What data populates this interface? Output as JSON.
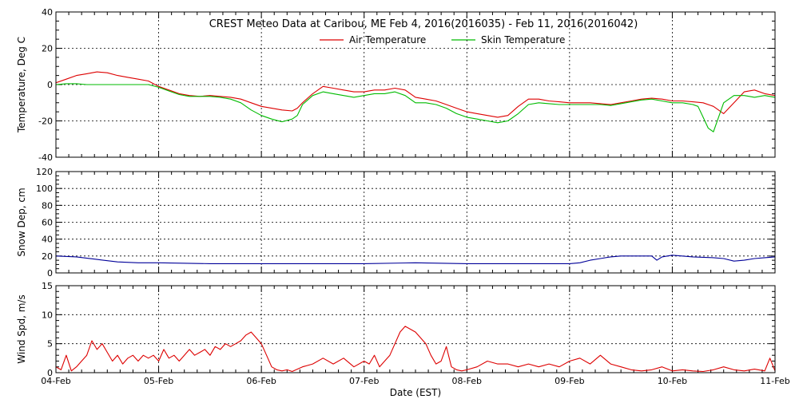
{
  "chart_data": {
    "type": "line",
    "title": "CREST Meteo Data at Caribou, ME   Feb  4, 2016(2016035) - Feb 11, 2016(2016042)",
    "xlabel": "Date (EST)",
    "x_ticks": [
      "04-Feb",
      "05-Feb",
      "06-Feb",
      "07-Feb",
      "08-Feb",
      "09-Feb",
      "10-Feb",
      "11-Feb"
    ],
    "x_range": [
      0,
      7
    ],
    "grid": true,
    "legend_placement": "top-center",
    "panels": [
      {
        "id": "temperature",
        "ylabel": "Temperature, Deg C",
        "ylim": [
          -40,
          40
        ],
        "yticks": [
          -40,
          -20,
          0,
          20,
          40
        ],
        "series": [
          {
            "name": "Air Temperature",
            "color": "#dd0000",
            "x": [
              0,
              0.1,
              0.2,
              0.3,
              0.4,
              0.5,
              0.6,
              0.7,
              0.8,
              0.9,
              1.0,
              1.1,
              1.2,
              1.3,
              1.4,
              1.5,
              1.6,
              1.7,
              1.8,
              1.9,
              2.0,
              2.1,
              2.2,
              2.3,
              2.35,
              2.4,
              2.5,
              2.6,
              2.7,
              2.8,
              2.9,
              3.0,
              3.1,
              3.2,
              3.3,
              3.4,
              3.5,
              3.6,
              3.7,
              3.8,
              3.9,
              4.0,
              4.1,
              4.2,
              4.3,
              4.4,
              4.5,
              4.6,
              4.7,
              4.8,
              4.9,
              5.0,
              5.1,
              5.2,
              5.3,
              5.4,
              5.5,
              5.6,
              5.7,
              5.8,
              5.9,
              6.0,
              6.1,
              6.2,
              6.3,
              6.4,
              6.5,
              6.6,
              6.7,
              6.8,
              6.9,
              7.0
            ],
            "y": [
              1,
              3,
              5,
              6,
              7,
              6.5,
              5,
              4,
              3,
              2,
              -1,
              -3,
              -5,
              -6,
              -6.5,
              -6,
              -6.5,
              -7,
              -8,
              -10,
              -12,
              -13,
              -14,
              -14.5,
              -13,
              -10,
              -5,
              -1,
              -2,
              -3,
              -4,
              -4,
              -3,
              -3,
              -2,
              -3,
              -7,
              -8,
              -9,
              -11,
              -13,
              -15,
              -16,
              -17,
              -18,
              -17,
              -12,
              -8,
              -8,
              -9,
              -9.5,
              -10,
              -10,
              -10,
              -10.5,
              -11,
              -10,
              -9,
              -8,
              -7.5,
              -8,
              -9,
              -9,
              -9.5,
              -10,
              -12,
              -16,
              -10,
              -4,
              -3,
              -5,
              -6
            ]
          },
          {
            "name": "Skin Temperature",
            "color": "#00bb00",
            "x": [
              0,
              0.1,
              0.2,
              0.3,
              0.4,
              0.5,
              0.6,
              0.7,
              0.8,
              0.9,
              1.0,
              1.1,
              1.2,
              1.3,
              1.4,
              1.5,
              1.6,
              1.7,
              1.8,
              1.9,
              2.0,
              2.1,
              2.2,
              2.3,
              2.35,
              2.4,
              2.5,
              2.6,
              2.7,
              2.8,
              2.9,
              3.0,
              3.1,
              3.2,
              3.3,
              3.4,
              3.5,
              3.6,
              3.7,
              3.8,
              3.9,
              4.0,
              4.1,
              4.2,
              4.3,
              4.4,
              4.5,
              4.6,
              4.7,
              4.8,
              4.9,
              5.0,
              5.1,
              5.2,
              5.3,
              5.4,
              5.5,
              5.6,
              5.7,
              5.8,
              5.9,
              6.0,
              6.1,
              6.2,
              6.25,
              6.3,
              6.35,
              6.4,
              6.5,
              6.6,
              6.7,
              6.8,
              6.9,
              7.0
            ],
            "y": [
              0,
              0.5,
              0.5,
              0,
              0,
              0,
              0,
              0,
              0,
              0,
              -1.5,
              -3.5,
              -5.5,
              -6.5,
              -6.5,
              -6.5,
              -7,
              -8,
              -10,
              -14,
              -17,
              -19,
              -20.5,
              -19,
              -17,
              -11,
              -6,
              -4,
              -5,
              -6,
              -7,
              -6,
              -5,
              -5,
              -4,
              -6,
              -10,
              -10,
              -11,
              -13,
              -16,
              -18,
              -19,
              -20,
              -21,
              -20,
              -16,
              -11,
              -10,
              -10.5,
              -11,
              -11,
              -11,
              -11,
              -11,
              -11.5,
              -10.5,
              -9.5,
              -8.5,
              -8,
              -9,
              -10,
              -10,
              -11,
              -12,
              -18,
              -24,
              -26,
              -10,
              -6,
              -6,
              -7,
              -6,
              -7
            ]
          }
        ]
      },
      {
        "id": "snow",
        "ylabel": "Snow Dep, cm",
        "ylim": [
          0,
          120
        ],
        "yticks": [
          0,
          20,
          40,
          60,
          80,
          100,
          120
        ],
        "series": [
          {
            "name": "",
            "color": "#000099",
            "x": [
              0,
              0.2,
              0.4,
              0.6,
              0.8,
              1.0,
              1.5,
              2.0,
              2.5,
              3.0,
              3.5,
              4.0,
              4.5,
              5.0,
              5.1,
              5.2,
              5.3,
              5.4,
              5.5,
              5.6,
              5.7,
              5.8,
              5.85,
              5.9,
              6.0,
              6.2,
              6.4,
              6.5,
              6.6,
              6.7,
              6.8,
              6.9,
              7.0
            ],
            "y": [
              20,
              19,
              16,
              13,
              12,
              12,
              11,
              11,
              11,
              11,
              12,
              11,
              11,
              11,
              12,
              15,
              17,
              19,
              20,
              20,
              20,
              20,
              15,
              19,
              21,
              19,
              18,
              17,
              14,
              15,
              17,
              18,
              19
            ]
          }
        ]
      },
      {
        "id": "wind",
        "ylabel": "Wind Spd, m/s",
        "ylim": [
          0,
          15
        ],
        "yticks": [
          0,
          5,
          10,
          15
        ],
        "series": [
          {
            "name": "",
            "color": "#dd0000",
            "x": [
              0,
              0.05,
              0.1,
              0.15,
              0.2,
              0.25,
              0.3,
              0.35,
              0.4,
              0.45,
              0.5,
              0.55,
              0.6,
              0.65,
              0.7,
              0.75,
              0.8,
              0.85,
              0.9,
              0.95,
              1.0,
              1.05,
              1.1,
              1.15,
              1.2,
              1.25,
              1.3,
              1.35,
              1.4,
              1.45,
              1.5,
              1.55,
              1.6,
              1.65,
              1.7,
              1.75,
              1.8,
              1.85,
              1.9,
              1.95,
              2.0,
              2.05,
              2.1,
              2.15,
              2.2,
              2.25,
              2.3,
              2.4,
              2.5,
              2.6,
              2.7,
              2.8,
              2.9,
              3.0,
              3.05,
              3.1,
              3.15,
              3.2,
              3.25,
              3.3,
              3.35,
              3.4,
              3.45,
              3.5,
              3.55,
              3.6,
              3.65,
              3.7,
              3.75,
              3.8,
              3.85,
              3.9,
              3.95,
              4.0,
              4.1,
              4.2,
              4.3,
              4.4,
              4.5,
              4.6,
              4.7,
              4.8,
              4.9,
              5.0,
              5.1,
              5.2,
              5.3,
              5.4,
              5.5,
              5.6,
              5.7,
              5.8,
              5.9,
              6.0,
              6.1,
              6.2,
              6.3,
              6.4,
              6.5,
              6.6,
              6.7,
              6.8,
              6.9,
              6.95,
              7.0
            ],
            "y": [
              1,
              0.5,
              3,
              0.3,
              1,
              2,
              3,
              5.5,
              4,
              5,
              3.5,
              2,
              3,
              1.5,
              2.5,
              3,
              2,
              3,
              2.5,
              3,
              2,
              4,
              2.5,
              3,
              2,
              3,
              4,
              3,
              3.5,
              4,
              3,
              4.5,
              4,
              5,
              4.5,
              5,
              5.5,
              6.5,
              7,
              6,
              5,
              3,
              1,
              0.5,
              0.3,
              0.5,
              0.2,
              1,
              1.5,
              2.5,
              1.5,
              2.5,
              1,
              2,
              1.5,
              3,
              1,
              2,
              3,
              5,
              7,
              8,
              7.5,
              7,
              6,
              5,
              3,
              1.5,
              2,
              4.5,
              1,
              0.5,
              0.3,
              0.5,
              1,
              2,
              1.5,
              1.5,
              1,
              1.5,
              1,
              1.5,
              1,
              2,
              2.5,
              1.5,
              3,
              1.5,
              1,
              0.5,
              0.3,
              0.5,
              1,
              0.3,
              0.5,
              0.3,
              0.2,
              0.5,
              1,
              0.5,
              0.3,
              0.6,
              0.3,
              2.5,
              0.3
            ]
          }
        ]
      }
    ]
  }
}
